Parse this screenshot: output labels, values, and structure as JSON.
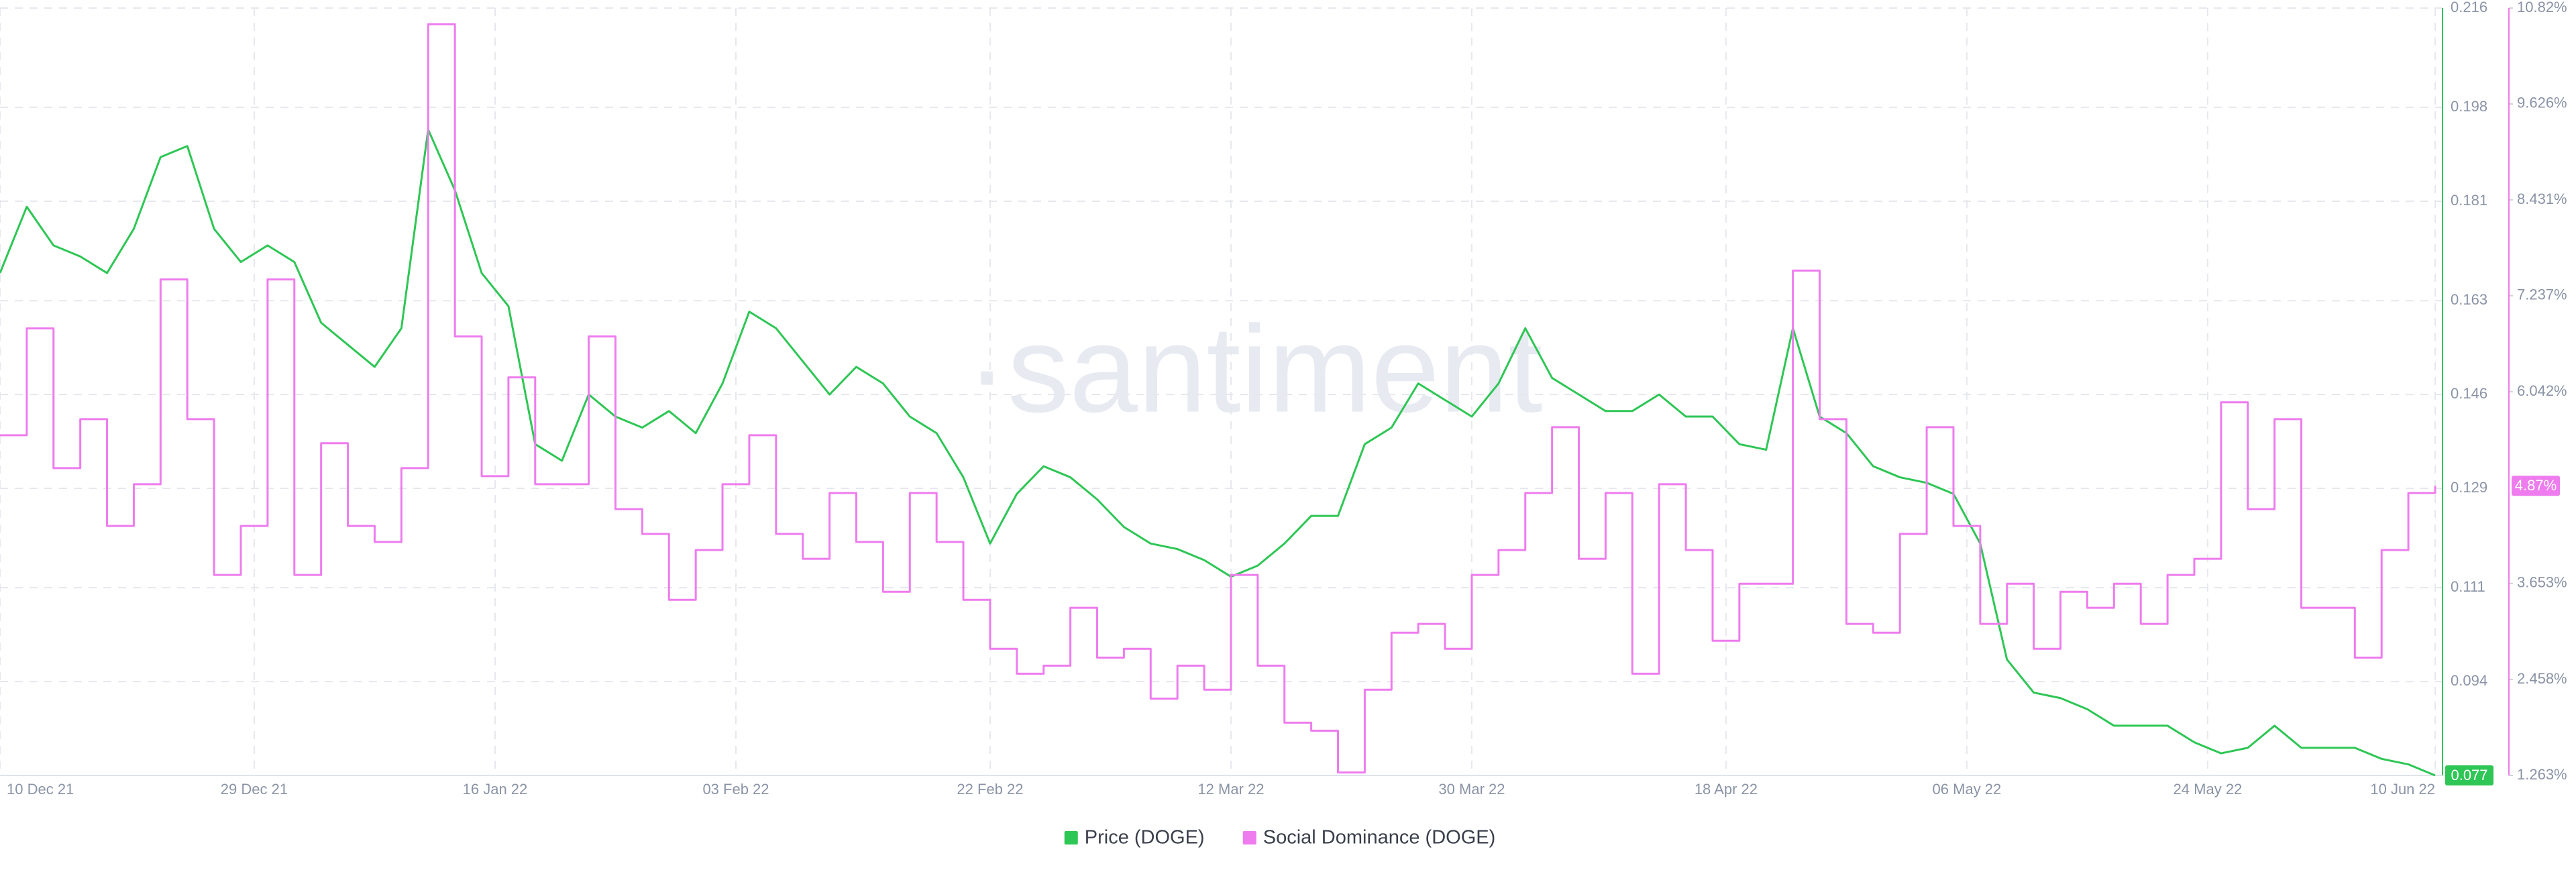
{
  "chart_data": {
    "type": "line",
    "watermark": "·santiment",
    "x": [
      "2021-12-10",
      "2021-12-12",
      "2021-12-14",
      "2021-12-16",
      "2021-12-18",
      "2021-12-20",
      "2021-12-22",
      "2021-12-24",
      "2021-12-26",
      "2021-12-28",
      "2021-12-30",
      "2022-01-01",
      "2022-01-03",
      "2022-01-05",
      "2022-01-07",
      "2022-01-09",
      "2022-01-11",
      "2022-01-13",
      "2022-01-15",
      "2022-01-17",
      "2022-01-19",
      "2022-01-21",
      "2022-01-23",
      "2022-01-25",
      "2022-01-27",
      "2022-01-29",
      "2022-01-31",
      "2022-02-02",
      "2022-02-04",
      "2022-02-06",
      "2022-02-08",
      "2022-02-10",
      "2022-02-12",
      "2022-02-14",
      "2022-02-16",
      "2022-02-18",
      "2022-02-20",
      "2022-02-22",
      "2022-02-24",
      "2022-02-26",
      "2022-02-28",
      "2022-03-02",
      "2022-03-04",
      "2022-03-06",
      "2022-03-08",
      "2022-03-10",
      "2022-03-12",
      "2022-03-14",
      "2022-03-16",
      "2022-03-18",
      "2022-03-20",
      "2022-03-22",
      "2022-03-24",
      "2022-03-26",
      "2022-03-28",
      "2022-03-30",
      "2022-04-01",
      "2022-04-03",
      "2022-04-05",
      "2022-04-07",
      "2022-04-09",
      "2022-04-11",
      "2022-04-13",
      "2022-04-15",
      "2022-04-17",
      "2022-04-19",
      "2022-04-21",
      "2022-04-23",
      "2022-04-25",
      "2022-04-27",
      "2022-04-29",
      "2022-05-01",
      "2022-05-03",
      "2022-05-05",
      "2022-05-07",
      "2022-05-09",
      "2022-05-11",
      "2022-05-13",
      "2022-05-15",
      "2022-05-17",
      "2022-05-19",
      "2022-05-21",
      "2022-05-23",
      "2022-05-25",
      "2022-05-27",
      "2022-05-29",
      "2022-05-31",
      "2022-06-02",
      "2022-06-04",
      "2022-06-06",
      "2022-06-08",
      "2022-06-10"
    ],
    "xlim": [
      "2021-12-10",
      "2022-06-10"
    ],
    "xticks": [
      {
        "value": "2021-12-10",
        "label": "10 Dec 21"
      },
      {
        "value": "2021-12-29",
        "label": "29 Dec 21"
      },
      {
        "value": "2022-01-16",
        "label": "16 Jan 22"
      },
      {
        "value": "2022-02-03",
        "label": "03 Feb 22"
      },
      {
        "value": "2022-02-22",
        "label": "22 Feb 22"
      },
      {
        "value": "2022-03-12",
        "label": "12 Mar 22"
      },
      {
        "value": "2022-03-30",
        "label": "30 Mar 22"
      },
      {
        "value": "2022-04-18",
        "label": "18 Apr 22"
      },
      {
        "value": "2022-05-06",
        "label": "06 May 22"
      },
      {
        "value": "2022-05-24",
        "label": "24 May 22"
      },
      {
        "value": "2022-06-10",
        "label": "10 Jun 22"
      }
    ],
    "ylim": [
      0.077,
      0.216
    ],
    "yticks": [
      0.216,
      0.198,
      0.181,
      0.163,
      0.146,
      0.129,
      0.111,
      0.094
    ],
    "y2lim": [
      1.263,
      10.82
    ],
    "y2ticks": [
      {
        "value": 10.82,
        "label": "10.82%"
      },
      {
        "value": 9.626,
        "label": "9.626%"
      },
      {
        "value": 8.431,
        "label": "8.431%"
      },
      {
        "value": 7.237,
        "label": "7.237%"
      },
      {
        "value": 6.042,
        "label": "6.042%"
      },
      {
        "value": 3.653,
        "label": "3.653%"
      },
      {
        "value": 2.458,
        "label": "2.458%"
      },
      {
        "value": 1.263,
        "label": "1.263%"
      }
    ],
    "grid": true,
    "legend": "bottom",
    "series": [
      {
        "name": "Price (DOGE)",
        "color": "#2ec655",
        "axis": "y",
        "end_label": "0.077",
        "values": [
          0.168,
          0.18,
          0.173,
          0.171,
          0.168,
          0.176,
          0.189,
          0.191,
          0.176,
          0.17,
          0.173,
          0.17,
          0.159,
          0.155,
          0.151,
          0.158,
          0.194,
          0.183,
          0.168,
          0.162,
          0.137,
          0.134,
          0.146,
          0.142,
          0.14,
          0.143,
          0.139,
          0.148,
          0.161,
          0.158,
          0.152,
          0.146,
          0.151,
          0.148,
          0.142,
          0.139,
          0.131,
          0.119,
          0.128,
          0.133,
          0.131,
          0.127,
          0.122,
          0.119,
          0.118,
          0.116,
          0.113,
          0.115,
          0.119,
          0.124,
          0.124,
          0.137,
          0.14,
          0.148,
          0.145,
          0.142,
          0.148,
          0.158,
          0.149,
          0.146,
          0.143,
          0.143,
          0.146,
          0.142,
          0.142,
          0.137,
          0.136,
          0.158,
          0.142,
          0.139,
          0.133,
          0.131,
          0.13,
          0.128,
          0.119,
          0.098,
          0.092,
          0.091,
          0.089,
          0.086,
          0.086,
          0.086,
          0.083,
          0.081,
          0.082,
          0.086,
          0.082,
          0.082,
          0.082,
          0.08,
          0.079,
          0.077
        ]
      },
      {
        "name": "Social Dominance (DOGE)",
        "color": "#ee7cee",
        "axis": "y2",
        "step": true,
        "end_label": "4.87%",
        "values": [
          5.5,
          6.83,
          5.09,
          5.7,
          4.37,
          4.89,
          7.44,
          5.7,
          3.76,
          4.37,
          7.44,
          3.76,
          5.4,
          4.37,
          4.17,
          5.09,
          10.62,
          6.73,
          4.99,
          6.22,
          4.89,
          4.89,
          6.73,
          4.58,
          4.27,
          3.45,
          4.07,
          4.89,
          5.5,
          4.27,
          3.96,
          4.78,
          4.17,
          3.55,
          4.78,
          4.17,
          3.45,
          2.84,
          2.53,
          2.63,
          3.35,
          2.73,
          2.84,
          2.22,
          2.63,
          2.33,
          3.76,
          2.63,
          1.92,
          1.82,
          1.3,
          2.33,
          3.04,
          3.15,
          2.84,
          3.76,
          4.07,
          4.78,
          5.6,
          3.96,
          4.78,
          2.53,
          4.89,
          4.07,
          2.94,
          3.65,
          3.65,
          7.55,
          5.7,
          3.15,
          3.04,
          4.27,
          5.6,
          4.37,
          3.15,
          3.65,
          2.84,
          3.55,
          3.35,
          3.65,
          3.15,
          3.76,
          3.96,
          5.91,
          4.58,
          5.7,
          3.35,
          3.35,
          2.73,
          4.07,
          4.78,
          4.87
        ]
      }
    ]
  }
}
